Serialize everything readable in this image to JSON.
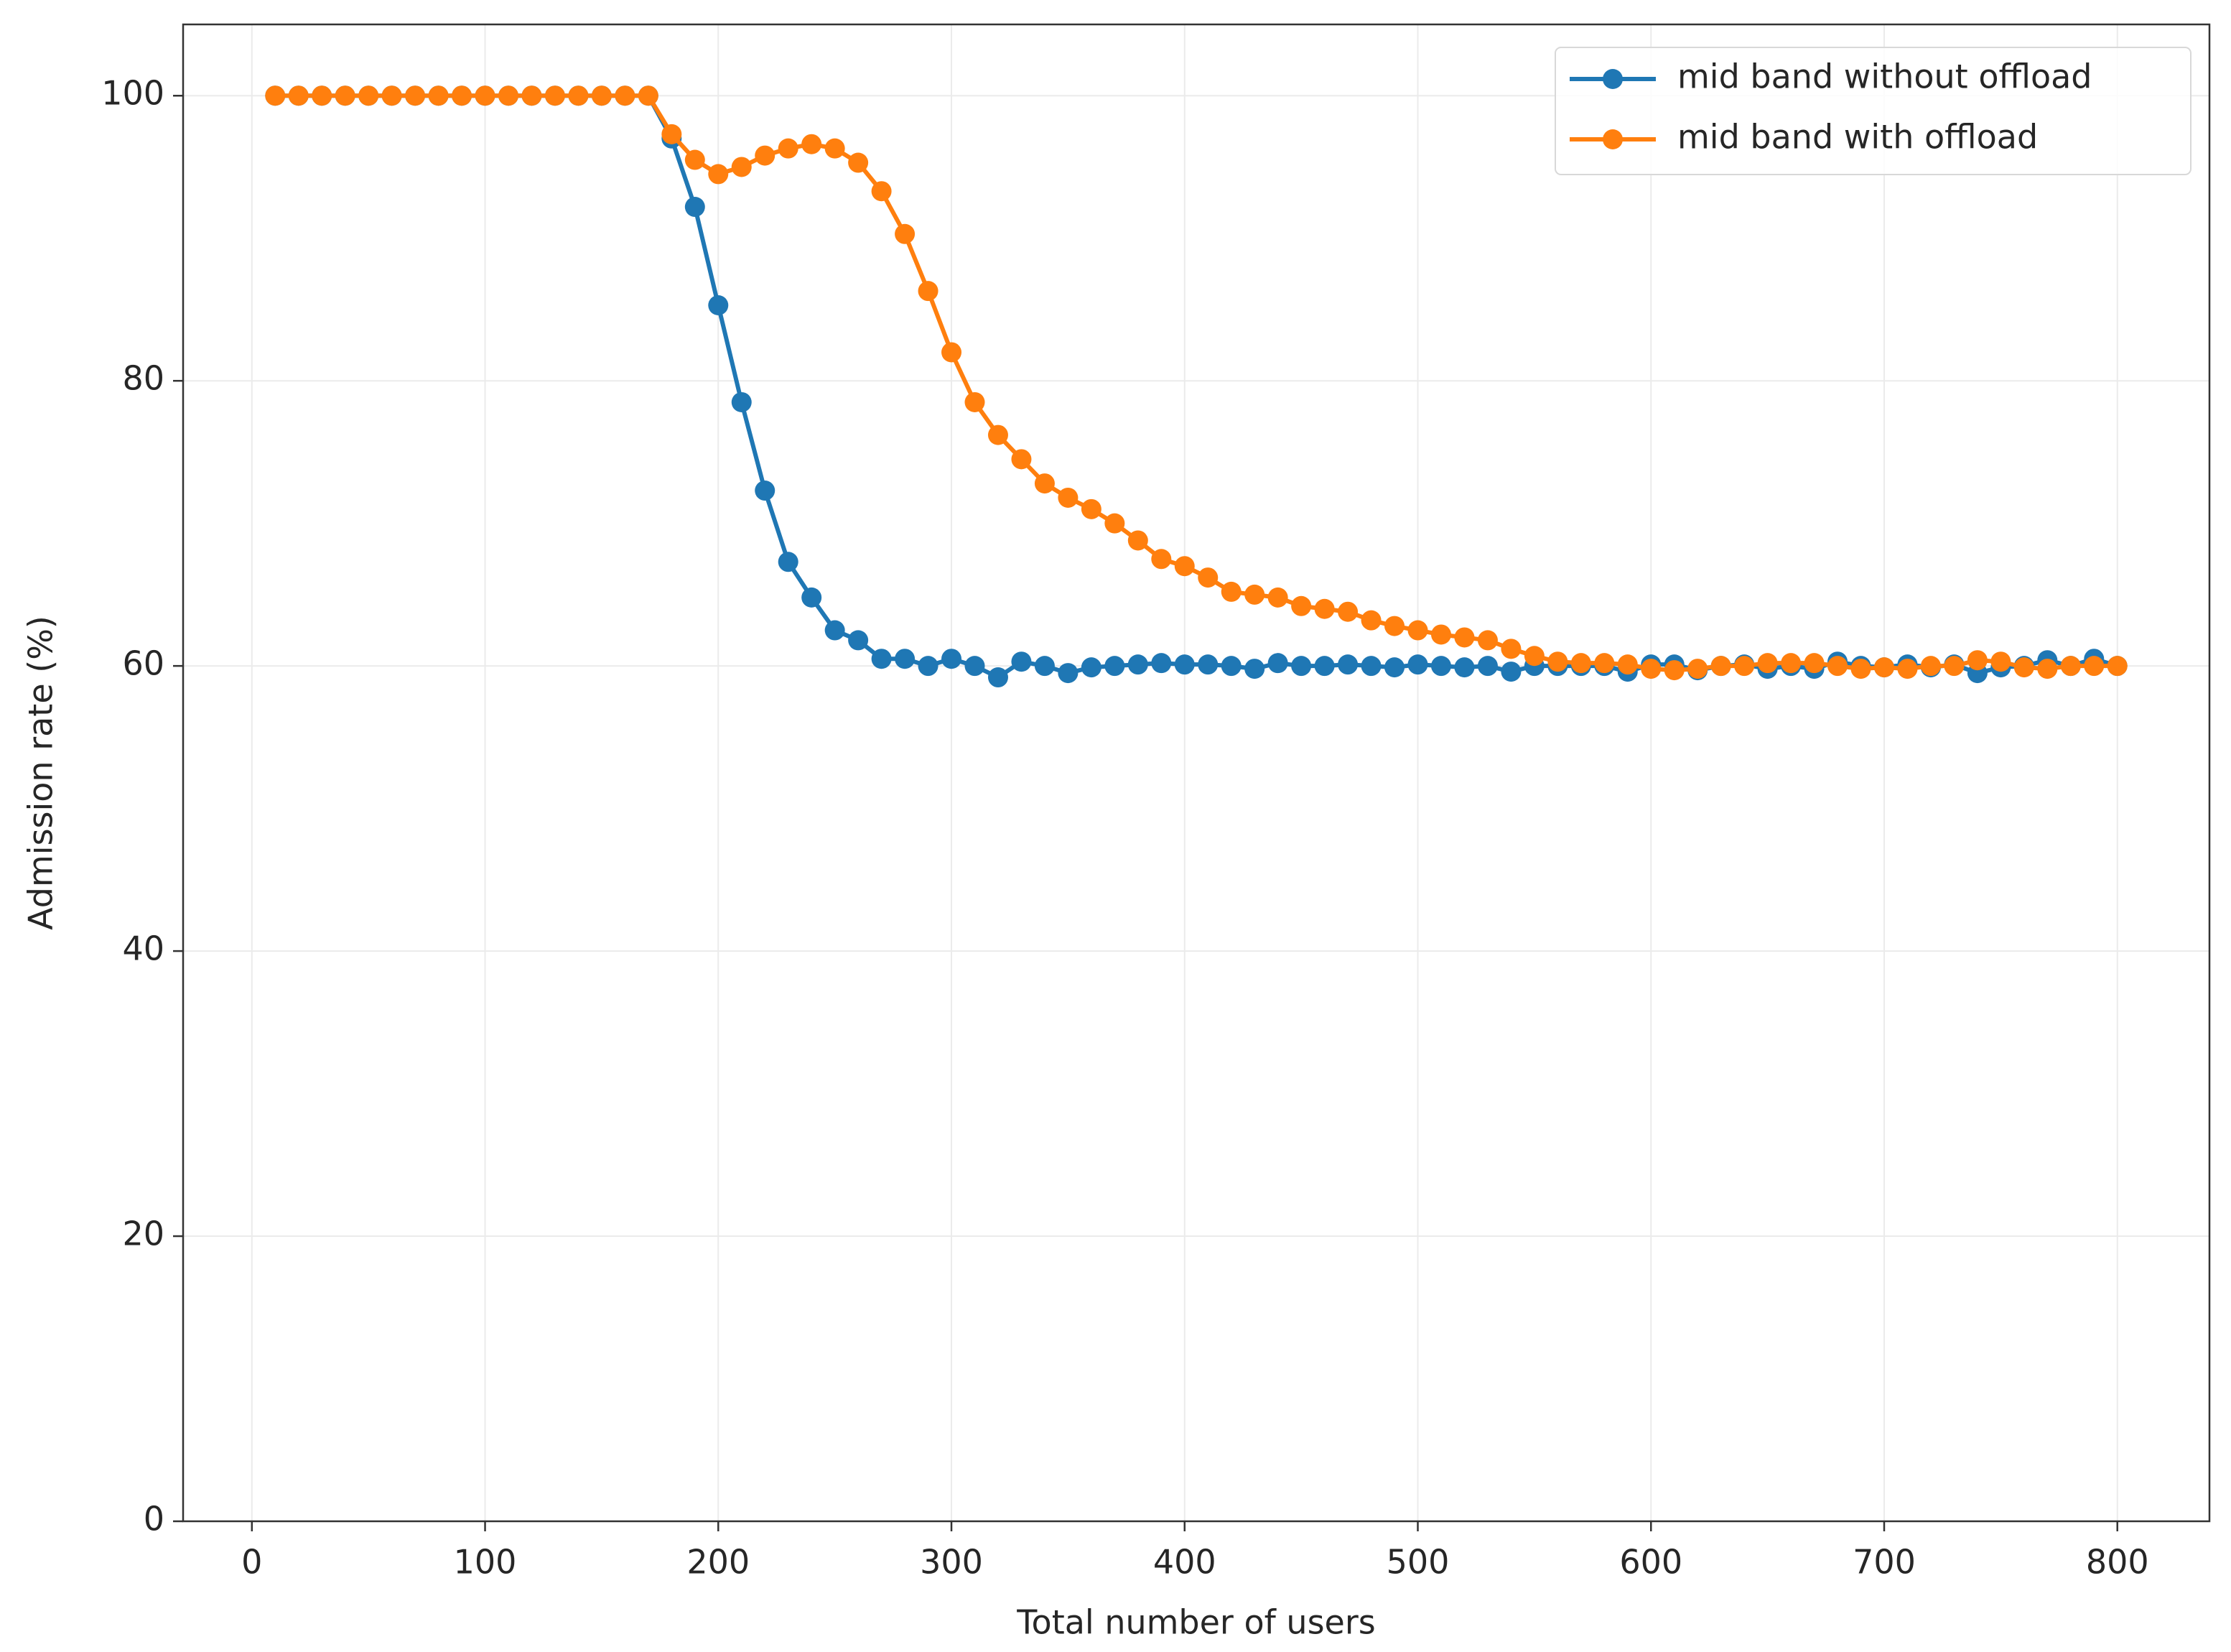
{
  "chart_data": {
    "type": "line",
    "xlabel": "Total number of users",
    "ylabel": "Admission rate (%)",
    "x": [
      10,
      20,
      30,
      40,
      50,
      60,
      70,
      80,
      90,
      100,
      110,
      120,
      130,
      140,
      150,
      160,
      170,
      180,
      190,
      200,
      210,
      220,
      230,
      240,
      250,
      260,
      270,
      280,
      290,
      300,
      310,
      320,
      330,
      340,
      350,
      360,
      370,
      380,
      390,
      400,
      410,
      420,
      430,
      440,
      450,
      460,
      470,
      480,
      490,
      500,
      510,
      520,
      530,
      540,
      550,
      560,
      570,
      580,
      590,
      600,
      610,
      620,
      630,
      640,
      650,
      660,
      670,
      680,
      690,
      700,
      710,
      720,
      730,
      740,
      750,
      760,
      770,
      780,
      790,
      800
    ],
    "series": [
      {
        "name": "mid band without offload",
        "color": "#1f77b4",
        "values": [
          100,
          100,
          100,
          100,
          100,
          100,
          100,
          100,
          100,
          100,
          100,
          100,
          100,
          100,
          100,
          100,
          100,
          97,
          92.2,
          85.3,
          78.5,
          72.3,
          67.3,
          64.8,
          62.5,
          61.8,
          60.5,
          60.5,
          60,
          60.5,
          60,
          59.2,
          60.3,
          60,
          59.5,
          59.9,
          60,
          60.1,
          60.2,
          60.1,
          60.1,
          60,
          59.8,
          60.2,
          60,
          60,
          60.1,
          60,
          59.9,
          60.1,
          60,
          59.9,
          60,
          59.6,
          60,
          60,
          60,
          60,
          59.6,
          60.1,
          60.1,
          59.7,
          60,
          60.1,
          59.8,
          60,
          59.8,
          60.3,
          60,
          59.9,
          60.1,
          59.9,
          60.1,
          59.5,
          59.9,
          60,
          60.4,
          60,
          60.5,
          60
        ]
      },
      {
        "name": "mid band with offload",
        "color": "#ff7f0e",
        "values": [
          100,
          100,
          100,
          100,
          100,
          100,
          100,
          100,
          100,
          100,
          100,
          100,
          100,
          100,
          100,
          100,
          100,
          97.3,
          95.5,
          94.5,
          95,
          95.8,
          96.3,
          96.6,
          96.3,
          95.3,
          93.3,
          90.3,
          86.3,
          82,
          78.5,
          76.2,
          74.5,
          72.8,
          71.8,
          71,
          70,
          68.8,
          67.5,
          67,
          66.2,
          65.2,
          65,
          64.8,
          64.2,
          64,
          63.8,
          63.2,
          62.8,
          62.5,
          62.2,
          62,
          61.8,
          61.2,
          60.7,
          60.3,
          60.2,
          60.2,
          60.1,
          59.8,
          59.7,
          59.8,
          60,
          60,
          60.2,
          60.2,
          60.2,
          60,
          59.8,
          59.9,
          59.8,
          60,
          60,
          60.4,
          60.3,
          59.9,
          59.8,
          60,
          60,
          60
        ]
      }
    ],
    "xlim": [
      -29.5,
      839.5
    ],
    "ylim": [
      0,
      105
    ],
    "xticks": [
      0,
      100,
      200,
      300,
      400,
      500,
      600,
      700,
      800
    ],
    "yticks": [
      0,
      20,
      40,
      60,
      80,
      100
    ],
    "grid": true,
    "legend": "upper right"
  }
}
